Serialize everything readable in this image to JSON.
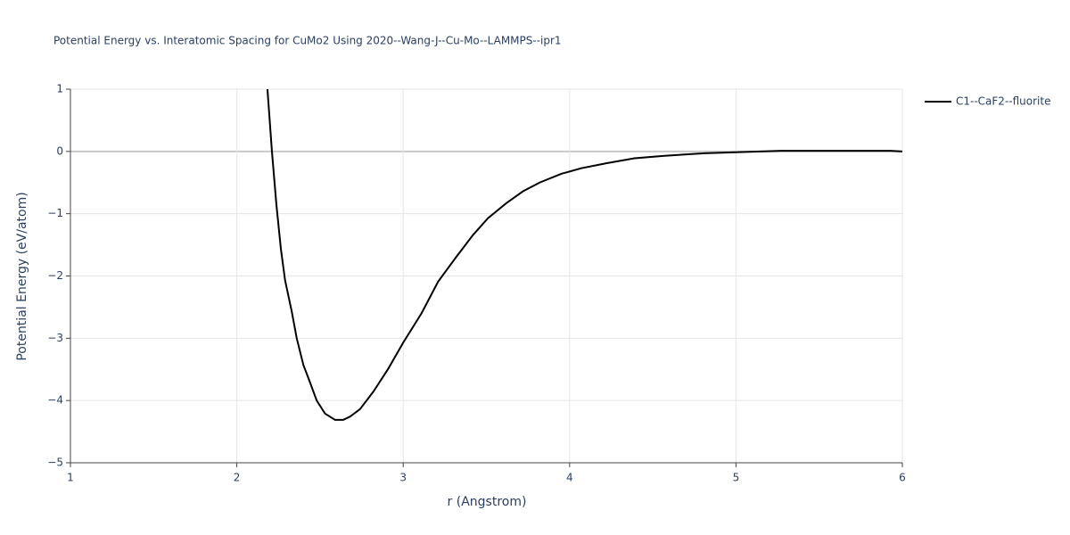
{
  "chart_data": {
    "type": "line",
    "title": "Potential Energy vs. Interatomic Spacing for CuMo2 Using 2020--Wang-J--Cu-Mo--LAMMPS--ipr1",
    "x_label": "r (Angstrom)",
    "y_label": "Potential Energy (eV/atom)",
    "xlim": [
      1,
      6
    ],
    "ylim": [
      -5,
      1
    ],
    "xticks": [
      1,
      2,
      3,
      4,
      5,
      6
    ],
    "yticks": [
      {
        "value": -5,
        "label": "−5"
      },
      {
        "value": -4,
        "label": "−4"
      },
      {
        "value": -3,
        "label": "−3"
      },
      {
        "value": -2,
        "label": "−2"
      },
      {
        "value": -1,
        "label": "−1"
      },
      0,
      1
    ],
    "grid": true,
    "legend": "right",
    "series": [
      {
        "name": "C1--CaF2--fluorite",
        "color": "#000000",
        "x": [
          2.184,
          2.211,
          2.238,
          2.265,
          2.29,
          2.33,
          2.36,
          2.4,
          2.44,
          2.48,
          2.53,
          2.59,
          2.64,
          2.68,
          2.74,
          2.82,
          2.91,
          3.0,
          3.11,
          3.21,
          3.32,
          3.42,
          3.51,
          3.62,
          3.72,
          3.82,
          3.95,
          4.07,
          4.22,
          4.39,
          4.57,
          4.81,
          5.27,
          5.93,
          6.0
        ],
        "values": [
          1,
          0,
          -0.86,
          -1.57,
          -2.07,
          -2.57,
          -3.0,
          -3.43,
          -3.71,
          -4.0,
          -4.21,
          -4.31,
          -4.31,
          -4.26,
          -4.14,
          -3.86,
          -3.49,
          -3.07,
          -2.6,
          -2.09,
          -1.69,
          -1.34,
          -1.07,
          -0.83,
          -0.64,
          -0.5,
          -0.36,
          -0.27,
          -0.19,
          -0.11,
          -0.07,
          -0.03,
          0.01,
          0.01,
          0
        ]
      }
    ]
  }
}
